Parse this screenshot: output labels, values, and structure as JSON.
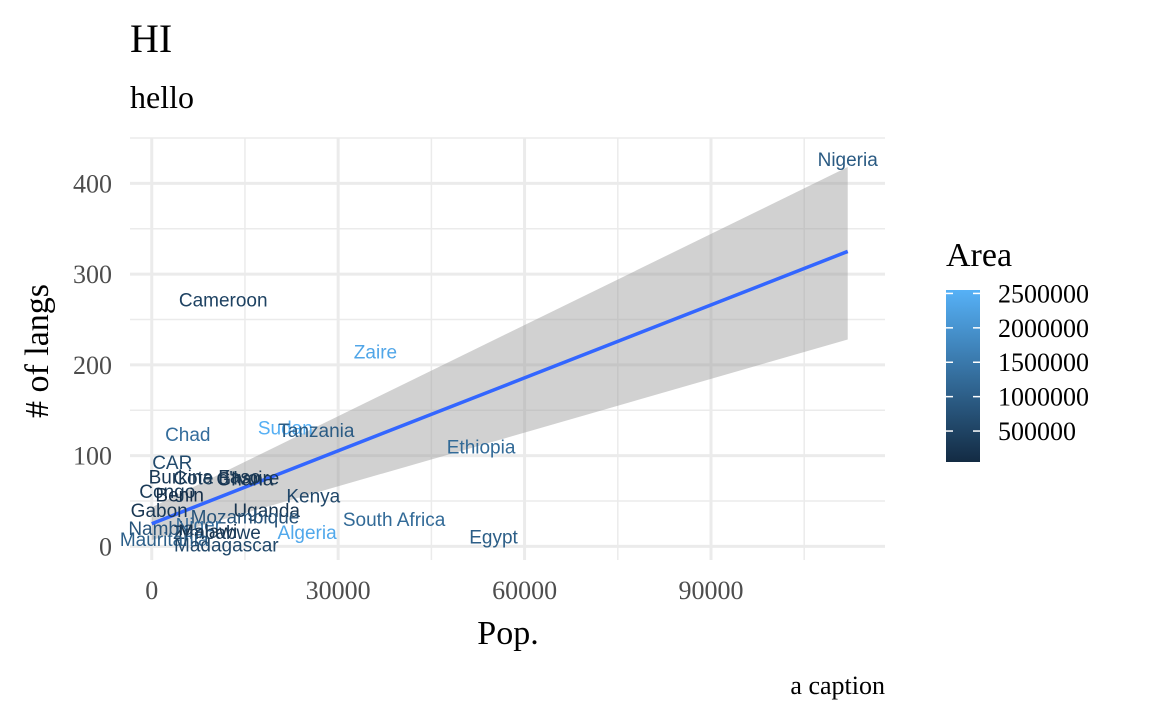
{
  "chart_data": {
    "type": "scatter",
    "title": "HI",
    "subtitle": "hello",
    "caption": "a caption",
    "xlabel": "Pop.",
    "ylabel": "# of langs",
    "xlim": [
      -3500,
      118000
    ],
    "ylim": [
      -15,
      450
    ],
    "x_ticks": [
      0,
      30000,
      60000,
      90000
    ],
    "y_ticks": [
      0,
      100,
      200,
      300,
      400
    ],
    "grid": true,
    "legend": {
      "title": "Area",
      "placement": "right",
      "low_color": "#132B43",
      "high_color": "#56B1F7",
      "min": 50000,
      "max": 2550000,
      "ticks": [
        500000,
        1000000,
        1500000,
        2000000,
        2500000
      ],
      "labels": [
        "500000",
        "1000000",
        "1500000",
        "2000000",
        "2500000"
      ]
    },
    "trend": {
      "type": "linear",
      "color": "#3366FF",
      "band_color": "#999999",
      "x": [
        0,
        112000
      ],
      "y": [
        25,
        325
      ],
      "lower": [
        7,
        228
      ],
      "upper": [
        43,
        418
      ]
    },
    "points": [
      {
        "label": "Nigeria",
        "x": 112000,
        "y": 427,
        "area": 924000
      },
      {
        "label": "Cameroon",
        "x": 11500,
        "y": 272,
        "area": 475000
      },
      {
        "label": "Zaire",
        "x": 36000,
        "y": 215,
        "area": 2345000
      },
      {
        "label": "Sudan",
        "x": 21500,
        "y": 131,
        "area": 2505000
      },
      {
        "label": "Tanzania",
        "x": 26500,
        "y": 128,
        "area": 945000
      },
      {
        "label": "Chad",
        "x": 5800,
        "y": 124,
        "area": 1284000
      },
      {
        "label": "Ethiopia",
        "x": 53000,
        "y": 110,
        "area": 1222000
      },
      {
        "label": "CAR",
        "x": 3300,
        "y": 93,
        "area": 623000
      },
      {
        "label": "Burkina Faso",
        "x": 8500,
        "y": 77,
        "area": 274000
      },
      {
        "label": "Cote d'Ivoire",
        "x": 12000,
        "y": 76,
        "area": 322000
      },
      {
        "label": "Ghana",
        "x": 15000,
        "y": 75,
        "area": 239000
      },
      {
        "label": "Congo",
        "x": 2500,
        "y": 61,
        "area": 342000
      },
      {
        "label": "Benin",
        "x": 4500,
        "y": 57,
        "area": 113000
      },
      {
        "label": "Kenya",
        "x": 26000,
        "y": 56,
        "area": 580000
      },
      {
        "label": "Uganda",
        "x": 18500,
        "y": 40,
        "area": 236000
      },
      {
        "label": "Gabon",
        "x": 1200,
        "y": 40,
        "area": 268000
      },
      {
        "label": "Mozambique",
        "x": 15000,
        "y": 33,
        "area": 802000
      },
      {
        "label": "South Africa",
        "x": 39000,
        "y": 30,
        "area": 1221000
      },
      {
        "label": "Niger",
        "x": 7500,
        "y": 24,
        "area": 1267000
      },
      {
        "label": "Nambia",
        "x": 1500,
        "y": 20,
        "area": 824000
      },
      {
        "label": "Malawi",
        "x": 9000,
        "y": 17,
        "area": 118000
      },
      {
        "label": "Zimbabwe",
        "x": 10500,
        "y": 16,
        "area": 391000
      },
      {
        "label": "Algeria",
        "x": 25000,
        "y": 16,
        "area": 2382000
      },
      {
        "label": "Mauritania",
        "x": 2000,
        "y": 8,
        "area": 1031000
      },
      {
        "label": "Egypt",
        "x": 55000,
        "y": 11,
        "area": 1001000
      },
      {
        "label": "Madagascar",
        "x": 12000,
        "y": 2,
        "area": 587000
      }
    ]
  }
}
